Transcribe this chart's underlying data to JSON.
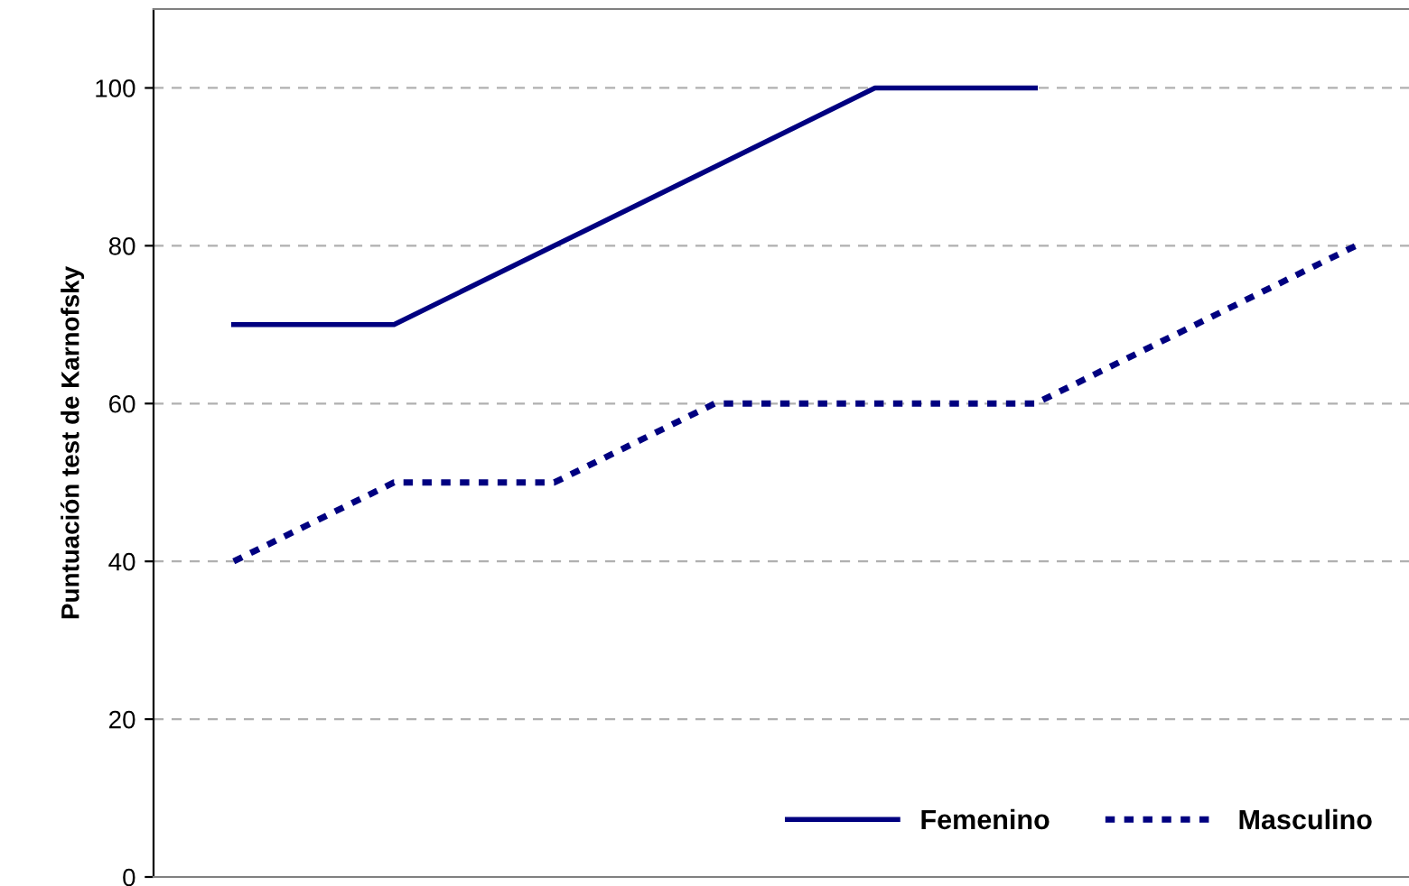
{
  "chart_data": {
    "type": "line",
    "ylabel": "Puntuación test de Karnofsky",
    "categories": [
      null,
      null,
      null,
      null,
      null,
      null,
      null,
      null
    ],
    "series": [
      {
        "name": "Femenino",
        "color": "#000080",
        "line_style": "solid",
        "values": [
          70,
          70,
          80,
          90,
          100,
          100,
          null,
          null
        ]
      },
      {
        "name": "Masculino",
        "color": "#000080",
        "line_style": "dotted",
        "values": [
          40,
          50,
          50,
          60,
          60,
          60,
          70,
          80
        ]
      }
    ],
    "ylim": [
      0,
      110
    ],
    "yticks": [
      0,
      20,
      40,
      60,
      80,
      100
    ],
    "grid": "y",
    "legend": "bottom right",
    "marker": "none"
  }
}
